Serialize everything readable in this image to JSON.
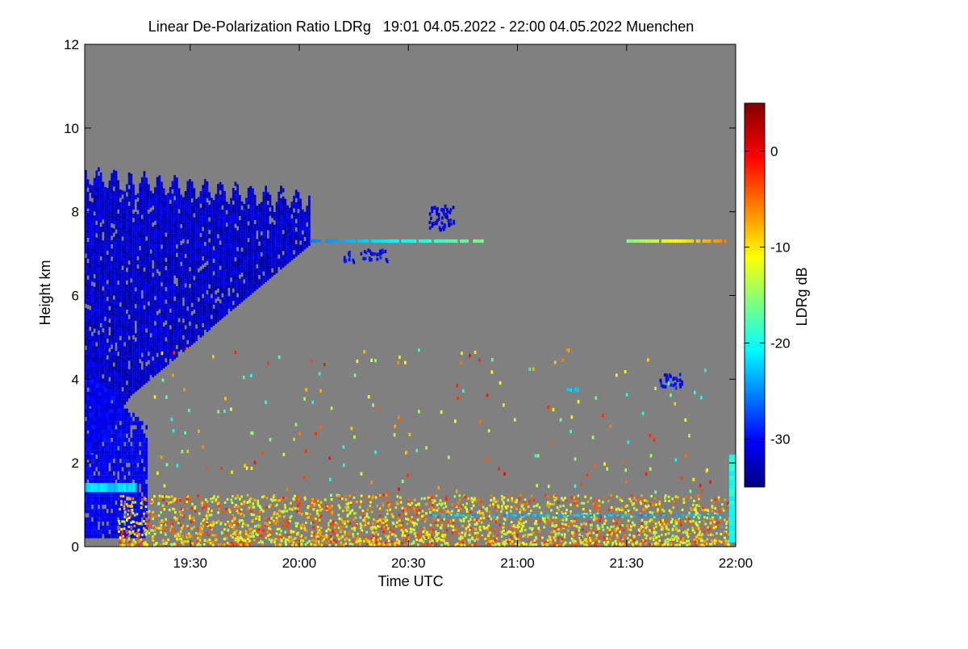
{
  "chart_data": {
    "type": "heatmap",
    "title": "Linear De-Polarization Ratio LDRg   19:01 04.05.2022 - 22:00 04.05.2022 Muenchen",
    "xlabel": "Time UTC",
    "ylabel": "Height km",
    "x_range_hours": [
      19.0167,
      22.0
    ],
    "y_range_km": [
      0,
      12
    ],
    "x_ticks": [
      {
        "hour": 19.5,
        "label": "19:30"
      },
      {
        "hour": 20.0,
        "label": "20:00"
      },
      {
        "hour": 20.5,
        "label": "20:30"
      },
      {
        "hour": 21.0,
        "label": "21:00"
      },
      {
        "hour": 21.5,
        "label": "21:30"
      },
      {
        "hour": 22.0,
        "label": "22:00"
      }
    ],
    "y_ticks": [
      {
        "value": 0,
        "label": "0"
      },
      {
        "value": 2,
        "label": "2"
      },
      {
        "value": 4,
        "label": "4"
      },
      {
        "value": 6,
        "label": "6"
      },
      {
        "value": 8,
        "label": "8"
      },
      {
        "value": 10,
        "label": "10"
      },
      {
        "value": 12,
        "label": "12"
      }
    ],
    "colorbar": {
      "label": "LDRg dB",
      "range": [
        -35,
        5
      ],
      "ticks": [
        {
          "value": 0,
          "label": "0"
        },
        {
          "value": -10,
          "label": "-10"
        },
        {
          "value": -20,
          "label": "-20"
        },
        {
          "value": -30,
          "label": "-30"
        }
      ],
      "colormap": "jet"
    },
    "no_data_color": "#808080",
    "features": [
      {
        "name": "cirrus-cloud",
        "t_start": 19.0167,
        "t_end": 20.05,
        "h_bottom": 4.0,
        "h_top": 8.8,
        "ldr_db": -32
      },
      {
        "name": "cloud-layer-7-3km",
        "t_start": 20.05,
        "t_end": 20.85,
        "h": 7.3,
        "ldr_db": -20
      },
      {
        "name": "cloud-layer-7-3km-late",
        "t_start": 21.5,
        "t_end": 21.95,
        "h": 7.3,
        "ldr_db": -10
      },
      {
        "name": "low-cloud-1-4km",
        "t_start": 19.0167,
        "t_end": 19.25,
        "h": 1.4,
        "ldr_db": -23
      },
      {
        "name": "boundary-layer-noise",
        "t_start": 19.0167,
        "t_end": 22.0,
        "h_bottom": 0,
        "h_top": 1.2,
        "ldr_db": -8
      }
    ]
  }
}
